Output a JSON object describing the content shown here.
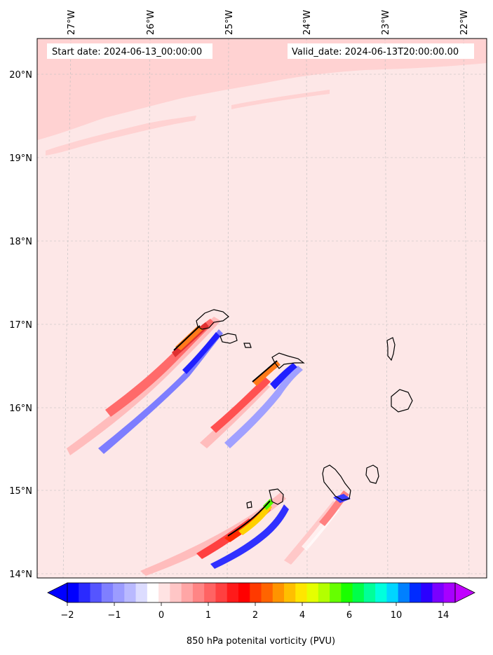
{
  "header": {
    "start_date": "Start date: 2024-06-13_00:00:00",
    "valid_date": "Valid_date: 2024-06-13T20:00:00.00"
  },
  "map": {
    "longitude_labels": [
      "27°W",
      "26°W",
      "25°W",
      "24°W",
      "23°W",
      "22°W"
    ],
    "latitude_labels": [
      "20°N",
      "19°N",
      "18°N",
      "17°N",
      "16°N",
      "15°N",
      "14°N"
    ],
    "background_color": "#fde7e7",
    "land_outline_color": "#000000"
  },
  "colorbar": {
    "label": "850 hPa potenital vorticity (PVU)",
    "tick_labels": [
      "−2",
      "−1",
      "0",
      "1",
      "2",
      "4",
      "6",
      "10",
      "14"
    ],
    "colors": [
      "#0000ff",
      "#2a2aff",
      "#5555ff",
      "#7f7fff",
      "#9c9cff",
      "#b9b9ff",
      "#dcdcff",
      "#ffffff",
      "#ffe3e3",
      "#ffc6c6",
      "#ffa6a6",
      "#ff8585",
      "#ff6363",
      "#ff4040",
      "#ff1a1a",
      "#ff0000",
      "#ff3a00",
      "#ff6400",
      "#ff9400",
      "#ffbf00",
      "#ffe600",
      "#e5ff00",
      "#b3ff00",
      "#66ff00",
      "#1aff00",
      "#00ff4a",
      "#00ff99",
      "#00ffdd",
      "#00d5ff",
      "#0080ff",
      "#002bff",
      "#2b00ff",
      "#7a00ff",
      "#a700ff"
    ],
    "extend_low_color": "#0000ff",
    "extend_high_color": "#c000ff"
  }
}
